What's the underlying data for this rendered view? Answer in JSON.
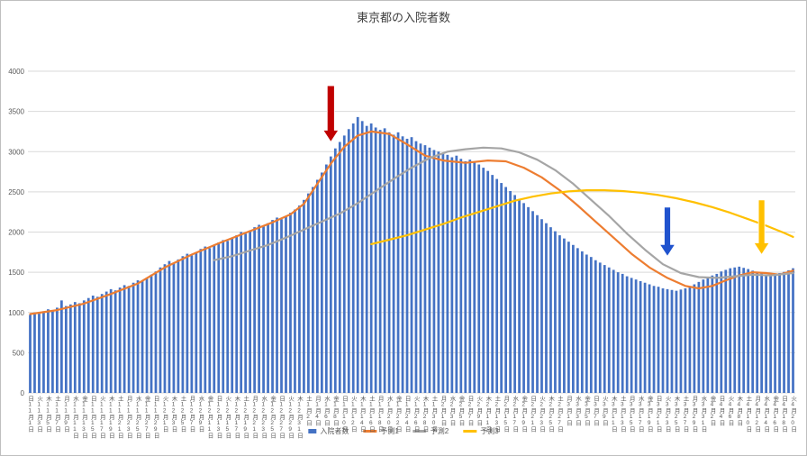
{
  "app": {
    "background": "#FFFFFF",
    "border_color": "#BFBFBF"
  },
  "chart_data": {
    "type": "bar",
    "title": "東京都の入院者数",
    "xlabel": "",
    "ylabel": "",
    "ylim": [
      0,
      4000
    ],
    "y_tick_step": 500,
    "y_tick_labels": [
      "0",
      "500",
      "1000",
      "1500",
      "2000",
      "2500",
      "3000",
      "3500",
      "4000"
    ],
    "grid": true,
    "legend_position": "bottom",
    "days_total": 171,
    "start_label": "11月1日",
    "end_label": "4月20日",
    "x_tick_labels": [
      "日11月1日",
      "火11月3日",
      "木11月5日",
      "土11月7日",
      "月11月9日",
      "水11月11日",
      "金11月13日",
      "日11月15日",
      "火11月17日",
      "木11月19日",
      "土11月21日",
      "月11月23日",
      "水11月25日",
      "金11月27日",
      "日11月29日",
      "火12月1日",
      "木12月3日",
      "土12月5日",
      "月12月7日",
      "水12月9日",
      "金12月11日",
      "日12月13日",
      "火12月15日",
      "木12月17日",
      "土12月19日",
      "月12月21日",
      "水12月23日",
      "金12月25日",
      "日12月27日",
      "火12月29日",
      "木12月31日",
      "土1月2日",
      "月1月4日",
      "水1月6日",
      "金1月8日",
      "日1月10日",
      "火1月12日",
      "木1月14日",
      "土1月16日",
      "月1月18日",
      "水1月20日",
      "金1月22日",
      "日1月24日",
      "火1月26日",
      "木1月28日",
      "土1月30日",
      "月2月1日",
      "水2月3日",
      "金2月5日",
      "日2月7日",
      "火2月9日",
      "木2月11日",
      "土2月13日",
      "月2月15日",
      "水2月17日",
      "金2月19日",
      "日2月21日",
      "火2月23日",
      "木2月25日",
      "土2月27日",
      "月3月1日",
      "水3月3日",
      "金3月5日",
      "日3月7日",
      "火3月9日",
      "木3月11日",
      "土3月13日",
      "月3月15日",
      "水3月17日",
      "金3月19日",
      "日3月21日",
      "火3月23日",
      "木3月25日",
      "土3月27日",
      "月3月29日",
      "水3月31日",
      "金4月2日",
      "日4月4日",
      "火4月6日",
      "木4月8日",
      "土4月10日",
      "月4月12日",
      "水4月14日",
      "金4月16日",
      "日4月18日",
      "火4月20日"
    ],
    "bar_series": {
      "name": "入院者数",
      "color": "#4472C4",
      "values": [
        970,
        1000,
        985,
        1015,
        1040,
        1025,
        1060,
        1150,
        1080,
        1100,
        1130,
        1115,
        1150,
        1180,
        1210,
        1195,
        1230,
        1260,
        1290,
        1275,
        1310,
        1340,
        1330,
        1370,
        1400,
        1390,
        1430,
        1470,
        1510,
        1560,
        1600,
        1640,
        1620,
        1660,
        1700,
        1730,
        1710,
        1750,
        1790,
        1820,
        1800,
        1840,
        1870,
        1900,
        1890,
        1930,
        1960,
        2000,
        1980,
        2020,
        2060,
        2090,
        2070,
        2110,
        2150,
        2180,
        2160,
        2200,
        2240,
        2280,
        2330,
        2400,
        2480,
        2560,
        2650,
        2740,
        2840,
        2940,
        3040,
        3120,
        3200,
        3280,
        3350,
        3430,
        3380,
        3320,
        3350,
        3300,
        3270,
        3290,
        3240,
        3210,
        3240,
        3190,
        3160,
        3180,
        3130,
        3100,
        3080,
        3050,
        3020,
        3000,
        2980,
        2960,
        2930,
        2950,
        2910,
        2880,
        2900,
        2870,
        2840,
        2800,
        2760,
        2710,
        2660,
        2610,
        2560,
        2510,
        2460,
        2410,
        2360,
        2310,
        2260,
        2210,
        2160,
        2110,
        2060,
        2010,
        1960,
        1920,
        1880,
        1840,
        1800,
        1760,
        1720,
        1690,
        1650,
        1620,
        1590,
        1560,
        1530,
        1500,
        1480,
        1450,
        1430,
        1410,
        1390,
        1370,
        1350,
        1330,
        1320,
        1300,
        1290,
        1280,
        1270,
        1285,
        1300,
        1325,
        1350,
        1380,
        1410,
        1430,
        1460,
        1480,
        1510,
        1530,
        1550,
        1560,
        1570,
        1555,
        1540,
        1520,
        1500,
        1485,
        1470,
        1465,
        1475,
        1490,
        1505,
        1525,
        1550
      ]
    },
    "line_series": [
      {
        "name": "予測1",
        "color": "#ED7D31",
        "points": [
          [
            0,
            980
          ],
          [
            6,
            1030
          ],
          [
            12,
            1110
          ],
          [
            18,
            1230
          ],
          [
            24,
            1360
          ],
          [
            30,
            1560
          ],
          [
            36,
            1720
          ],
          [
            42,
            1860
          ],
          [
            48,
            1990
          ],
          [
            54,
            2120
          ],
          [
            58,
            2220
          ],
          [
            61,
            2350
          ],
          [
            64,
            2600
          ],
          [
            67,
            2850
          ],
          [
            70,
            3060
          ],
          [
            73,
            3200
          ],
          [
            76,
            3250
          ],
          [
            80,
            3220
          ],
          [
            84,
            3090
          ],
          [
            88,
            2950
          ],
          [
            92,
            2890
          ],
          [
            97,
            2860
          ],
          [
            102,
            2890
          ],
          [
            106,
            2880
          ],
          [
            110,
            2800
          ],
          [
            114,
            2680
          ],
          [
            118,
            2520
          ],
          [
            122,
            2330
          ],
          [
            126,
            2130
          ],
          [
            130,
            1930
          ],
          [
            134,
            1730
          ],
          [
            138,
            1560
          ],
          [
            142,
            1430
          ],
          [
            146,
            1330
          ],
          [
            149,
            1300
          ],
          [
            152,
            1330
          ],
          [
            155,
            1400
          ],
          [
            158,
            1460
          ],
          [
            161,
            1500
          ],
          [
            164,
            1490
          ],
          [
            167,
            1470
          ],
          [
            170,
            1520
          ]
        ]
      },
      {
        "name": "予測2",
        "color": "#A5A5A5",
        "points": [
          [
            41,
            1650
          ],
          [
            45,
            1700
          ],
          [
            49,
            1770
          ],
          [
            53,
            1840
          ],
          [
            57,
            1930
          ],
          [
            61,
            2030
          ],
          [
            65,
            2130
          ],
          [
            69,
            2230
          ],
          [
            73,
            2360
          ],
          [
            77,
            2510
          ],
          [
            81,
            2660
          ],
          [
            85,
            2800
          ],
          [
            89,
            2920
          ],
          [
            93,
            3000
          ],
          [
            97,
            3030
          ],
          [
            101,
            3050
          ],
          [
            105,
            3040
          ],
          [
            109,
            2990
          ],
          [
            113,
            2900
          ],
          [
            117,
            2770
          ],
          [
            121,
            2600
          ],
          [
            125,
            2400
          ],
          [
            129,
            2200
          ],
          [
            133,
            1980
          ],
          [
            137,
            1780
          ],
          [
            141,
            1600
          ],
          [
            145,
            1490
          ],
          [
            149,
            1440
          ],
          [
            153,
            1430
          ],
          [
            157,
            1450
          ],
          [
            161,
            1470
          ],
          [
            165,
            1460
          ],
          [
            170,
            1490
          ]
        ]
      },
      {
        "name": "予測3",
        "color": "#FFC000",
        "points": [
          [
            76,
            1850
          ],
          [
            80,
            1905
          ],
          [
            84,
            1960
          ],
          [
            88,
            2030
          ],
          [
            92,
            2100
          ],
          [
            96,
            2180
          ],
          [
            100,
            2250
          ],
          [
            104,
            2320
          ],
          [
            108,
            2390
          ],
          [
            112,
            2440
          ],
          [
            116,
            2480
          ],
          [
            120,
            2505
          ],
          [
            124,
            2520
          ],
          [
            128,
            2520
          ],
          [
            132,
            2510
          ],
          [
            136,
            2490
          ],
          [
            140,
            2460
          ],
          [
            144,
            2420
          ],
          [
            148,
            2370
          ],
          [
            152,
            2310
          ],
          [
            156,
            2240
          ],
          [
            160,
            2160
          ],
          [
            164,
            2080
          ],
          [
            168,
            1990
          ],
          [
            170,
            1940
          ]
        ]
      }
    ],
    "annotations": [
      {
        "name": "red-arrow",
        "shape": "down-arrow",
        "color": "#C00000",
        "day_index": 67,
        "value_from": 3820,
        "value_to": 3120
      },
      {
        "name": "blue-arrow",
        "shape": "down-arrow",
        "color": "#2053CE",
        "day_index": 142,
        "value_from": 2310,
        "value_to": 1700
      },
      {
        "name": "yellow-arrow",
        "shape": "down-arrow",
        "color": "#FFC000",
        "day_index": 163,
        "value_from": 2400,
        "value_to": 1720
      }
    ]
  },
  "legend": {
    "entries": [
      {
        "label": "入院者数",
        "color": "#4472C4",
        "marker": "bar"
      },
      {
        "label": "予測1",
        "color": "#ED7D31",
        "marker": "line"
      },
      {
        "label": "予測2",
        "color": "#A5A5A5",
        "marker": "line"
      },
      {
        "label": "予測3",
        "color": "#FFC000",
        "marker": "line"
      }
    ]
  }
}
